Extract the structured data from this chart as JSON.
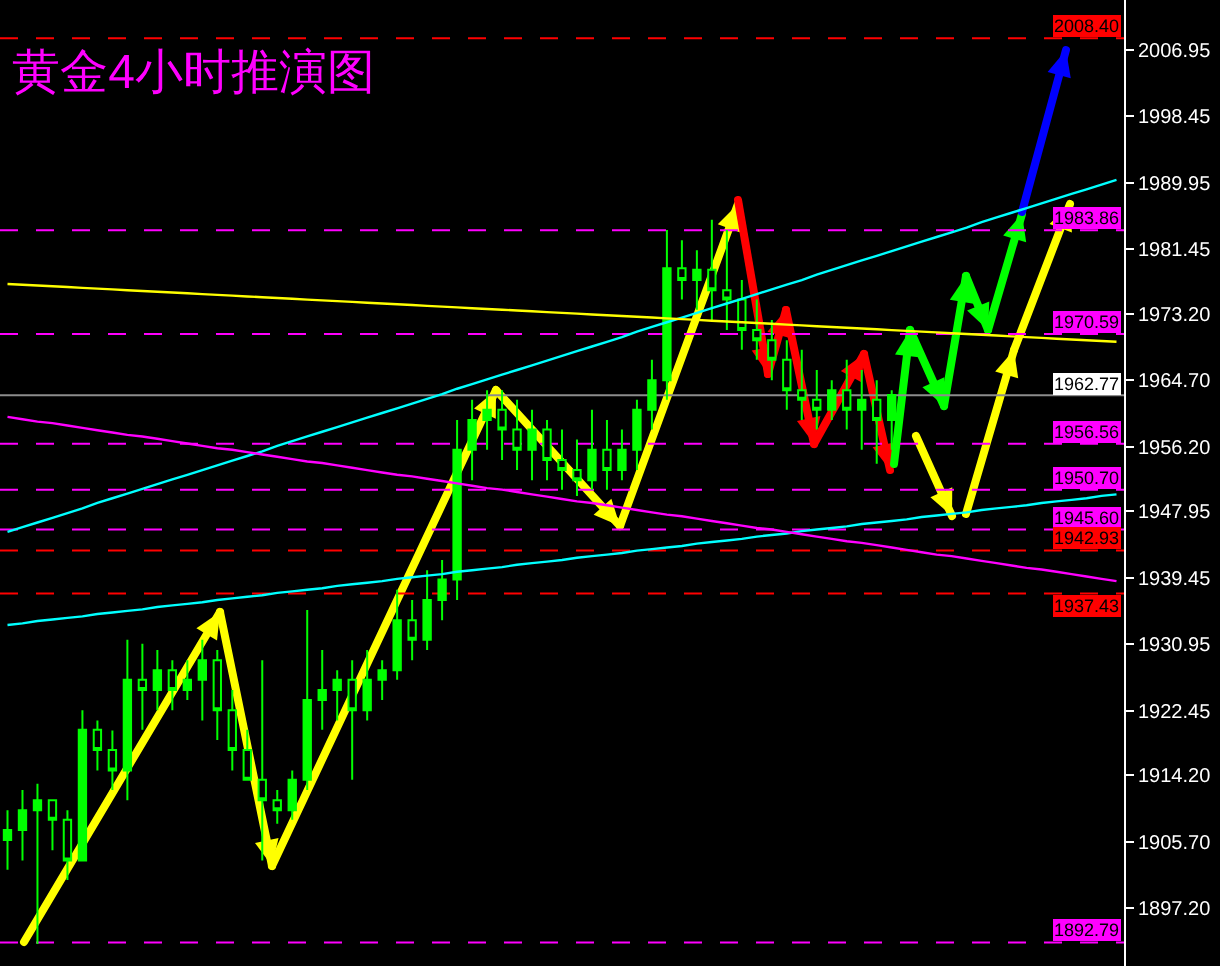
{
  "chart_data": {
    "type": "candlestick",
    "title": "黄金4小时推演图",
    "categories": [
      null,
      null,
      null,
      null,
      null,
      null,
      null,
      null,
      null,
      null,
      null,
      null,
      null,
      null,
      null,
      null,
      null,
      null,
      null,
      null,
      null,
      null,
      null,
      null,
      null,
      null,
      null,
      null,
      null,
      null,
      null,
      null,
      null,
      null,
      null,
      null,
      null,
      null,
      null,
      null,
      null,
      null,
      null,
      null,
      null,
      null,
      null,
      null,
      null,
      null,
      null,
      null,
      null,
      null,
      null,
      null,
      null,
      null,
      null,
      null,
      null,
      null,
      null,
      null,
      null,
      null,
      null,
      null,
      null,
      null,
      null,
      null,
      null,
      null,
      null
    ],
    "ylim": [
      1889.8,
      2013.3
    ],
    "yticks": [
      2006.95,
      1998.45,
      1989.95,
      1981.45,
      {
        "value": 1973.2,
        "label": "1973.20"
      },
      {
        "value": 1964.7,
        "label": "1964.70"
      },
      {
        "value": 1956.2,
        "label": "1956.20"
      },
      1947.95,
      1939.45,
      1930.95,
      1922.45,
      {
        "value": 1914.2,
        "label": "1914.20"
      },
      {
        "value": 1905.7,
        "label": "1905.70"
      },
      {
        "value": 1897.2,
        "label": "1897.20"
      }
    ],
    "tick_labels": "y",
    "legend": false,
    "grid": false,
    "series": [
      {
        "color": "#00ff00",
        "ohlc": [
          [
            1905.9,
            1909.7,
            1902.1,
            1907.2
          ],
          [
            1907.2,
            1912.3,
            1903.3,
            1909.7
          ],
          [
            1909.7,
            1913.1,
            1892.6,
            1911.0
          ],
          [
            1911.0,
            1911.0,
            1904.6,
            1908.5
          ],
          [
            1908.5,
            1909.7,
            1900.8,
            1903.3
          ],
          [
            1903.3,
            1922.5,
            1903.3,
            1920.0
          ],
          [
            1920.0,
            1921.2,
            1914.8,
            1917.4
          ],
          [
            1917.4,
            1919.9,
            1912.3,
            1914.8
          ],
          [
            1914.8,
            1931.5,
            1911.0,
            1926.4
          ],
          [
            1926.4,
            1931.0,
            1920.0,
            1925.1
          ],
          [
            1925.1,
            1930.2,
            1922.5,
            1927.6
          ],
          [
            1927.6,
            1928.9,
            1922.5,
            1925.1
          ],
          [
            1925.1,
            1928.9,
            1923.8,
            1926.4
          ],
          [
            1926.4,
            1931.5,
            1921.2,
            1928.9
          ],
          [
            1928.9,
            1930.2,
            1918.7,
            1922.5
          ],
          [
            1922.5,
            1925.1,
            1914.8,
            1917.4
          ],
          [
            1917.4,
            1920.0,
            1913.6,
            1913.6
          ],
          [
            1913.6,
            1928.9,
            1903.3,
            1911.0
          ],
          [
            1911.0,
            1912.3,
            1908.0,
            1909.7
          ],
          [
            1909.7,
            1914.8,
            1908.5,
            1913.6
          ],
          [
            1913.6,
            1935.3,
            1912.3,
            1923.8
          ],
          [
            1923.8,
            1930.2,
            1920.0,
            1925.1
          ],
          [
            1925.1,
            1927.6,
            1921.2,
            1926.4
          ],
          [
            1926.4,
            1928.9,
            1913.6,
            1922.5
          ],
          [
            1922.5,
            1930.2,
            1921.2,
            1926.4
          ],
          [
            1926.4,
            1928.9,
            1923.8,
            1927.6
          ],
          [
            1927.6,
            1937.9,
            1926.4,
            1934.0
          ],
          [
            1934.0,
            1936.6,
            1928.9,
            1931.5
          ],
          [
            1931.5,
            1940.4,
            1930.2,
            1936.6
          ],
          [
            1936.6,
            1941.7,
            1934.0,
            1939.2
          ],
          [
            1939.2,
            1959.6,
            1936.6,
            1955.8
          ],
          [
            1955.8,
            1962.2,
            1951.9,
            1959.6
          ],
          [
            1959.6,
            1963.4,
            1955.8,
            1960.9
          ],
          [
            1960.9,
            1963.4,
            1954.5,
            1958.4
          ],
          [
            1958.4,
            1962.2,
            1953.2,
            1955.8
          ],
          [
            1955.8,
            1960.9,
            1951.9,
            1958.4
          ],
          [
            1958.4,
            1959.6,
            1951.9,
            1954.5
          ],
          [
            1954.5,
            1958.4,
            1950.7,
            1953.2
          ],
          [
            1953.2,
            1957.1,
            1949.9,
            1951.9
          ],
          [
            1951.9,
            1960.9,
            1950.7,
            1955.8
          ],
          [
            1955.8,
            1959.6,
            1950.7,
            1953.2
          ],
          [
            1953.2,
            1958.4,
            1951.9,
            1955.8
          ],
          [
            1955.8,
            1962.2,
            1953.2,
            1960.9
          ],
          [
            1960.9,
            1967.3,
            1958.4,
            1964.7
          ],
          [
            1964.7,
            1983.9,
            1962.2,
            1979.0
          ],
          [
            1979.0,
            1982.6,
            1975.0,
            1977.5
          ],
          [
            1977.5,
            1981.3,
            1973.7,
            1978.8
          ],
          [
            1978.8,
            1985.2,
            1972.4,
            1976.2
          ],
          [
            1976.2,
            1983.9,
            1971.1,
            1975.0
          ],
          [
            1975.0,
            1977.5,
            1968.6,
            1971.1
          ],
          [
            1971.1,
            1975.0,
            1967.3,
            1969.8
          ],
          [
            1969.8,
            1972.4,
            1964.7,
            1967.3
          ],
          [
            1967.3,
            1969.8,
            1960.9,
            1963.4
          ],
          [
            1963.4,
            1968.6,
            1959.6,
            1962.2
          ],
          [
            1962.2,
            1966.0,
            1958.4,
            1960.9
          ],
          [
            1960.9,
            1964.7,
            1959.6,
            1963.4
          ],
          [
            1963.4,
            1967.3,
            1958.4,
            1960.9
          ],
          [
            1960.9,
            1966.0,
            1955.8,
            1962.2
          ],
          [
            1962.2,
            1964.7,
            1954.0,
            1959.6
          ],
          [
            1959.6,
            1963.4,
            1955.8,
            1962.8
          ],
          null,
          null,
          null,
          null,
          null,
          null,
          null,
          null,
          null,
          null,
          null,
          null,
          null,
          null,
          null
        ]
      },
      {
        "type": "line",
        "color": "#00ffff",
        "values": [
          1945.3,
          1945.9,
          1946.5,
          1947.1,
          1947.7,
          1948.3,
          1949.0,
          1949.6,
          1950.2,
          1950.8,
          1951.4,
          1952.0,
          1952.6,
          1953.2,
          1953.8,
          1954.4,
          1955.0,
          1955.6,
          1956.3,
          1956.9,
          1957.5,
          1958.1,
          1958.7,
          1959.3,
          1959.9,
          1960.5,
          1961.1,
          1961.7,
          1962.3,
          1962.9,
          1963.6,
          1964.2,
          1964.8,
          1965.4,
          1966.0,
          1966.6,
          1967.2,
          1967.8,
          1968.4,
          1969.0,
          1969.6,
          1970.2,
          1970.9,
          1971.5,
          1972.1,
          1972.7,
          1973.3,
          1973.9,
          1974.5,
          1975.1,
          1975.7,
          1976.3,
          1976.9,
          1977.5,
          1978.2,
          1978.8,
          1979.4,
          1980.0,
          1980.6,
          1981.2,
          1981.8,
          1982.4,
          1983.0,
          1983.6,
          1984.2,
          1984.9,
          1985.5,
          1986.1,
          1986.7,
          1987.3,
          1987.9,
          1988.5,
          1989.1,
          1989.7,
          1990.3
        ]
      },
      {
        "type": "line",
        "color": "#00ffff",
        "values": [
          1933.4,
          1933.6,
          1933.9,
          1934.1,
          1934.3,
          1934.5,
          1934.8,
          1935.0,
          1935.2,
          1935.4,
          1935.7,
          1935.9,
          1936.1,
          1936.3,
          1936.6,
          1936.8,
          1937.0,
          1937.2,
          1937.5,
          1937.7,
          1937.9,
          1938.1,
          1938.4,
          1938.6,
          1938.8,
          1939.0,
          1939.3,
          1939.5,
          1939.7,
          1939.9,
          1940.2,
          1940.4,
          1940.6,
          1940.8,
          1941.1,
          1941.3,
          1941.5,
          1941.7,
          1942.0,
          1942.2,
          1942.4,
          1942.6,
          1942.9,
          1943.1,
          1943.3,
          1943.5,
          1943.8,
          1944.0,
          1944.2,
          1944.4,
          1944.7,
          1944.9,
          1945.1,
          1945.4,
          1945.6,
          1945.8,
          1946.0,
          1946.3,
          1946.5,
          1946.7,
          1946.9,
          1947.2,
          1947.4,
          1947.6,
          1947.8,
          1948.1,
          1948.3,
          1948.5,
          1948.7,
          1949.0,
          1949.2,
          1949.4,
          1949.6,
          1949.9,
          1950.1
        ]
      },
      {
        "type": "line",
        "color": "#ffff00",
        "values": [
          1977.0,
          1976.9,
          1976.8,
          1976.7,
          1976.6,
          1976.5,
          1976.4,
          1976.3,
          1976.2,
          1976.1,
          1976.0,
          1975.9,
          1975.8,
          1975.7,
          1975.6,
          1975.5,
          1975.4,
          1975.3,
          1975.2,
          1975.1,
          1975.0,
          1974.9,
          1974.8,
          1974.7,
          1974.6,
          1974.5,
          1974.4,
          1974.3,
          1974.2,
          1974.1,
          1974.0,
          1973.9,
          1973.8,
          1973.7,
          1973.6,
          1973.5,
          1973.4,
          1973.3,
          1973.2,
          1973.1,
          1973.0,
          1972.9,
          1972.8,
          1972.7,
          1972.6,
          1972.5,
          1972.4,
          1972.3,
          1972.2,
          1972.1,
          1972.0,
          1971.9,
          1971.8,
          1971.7,
          1971.6,
          1971.5,
          1971.4,
          1971.3,
          1971.2,
          1971.1,
          1971.0,
          1970.9,
          1970.8,
          1970.7,
          1970.6,
          1970.5,
          1970.4,
          1970.3,
          1970.2,
          1970.1,
          1970.0,
          1969.9,
          1969.8,
          1969.7,
          1969.6
        ]
      },
      {
        "type": "line",
        "color": "#ff00ff",
        "values": [
          1960.0,
          1959.7,
          1959.4,
          1959.2,
          1958.9,
          1958.6,
          1958.3,
          1958.0,
          1957.7,
          1957.5,
          1957.2,
          1956.9,
          1956.6,
          1956.3,
          1956.0,
          1955.8,
          1955.5,
          1955.2,
          1954.9,
          1954.6,
          1954.3,
          1954.1,
          1953.8,
          1953.5,
          1953.2,
          1952.9,
          1952.6,
          1952.4,
          1952.1,
          1951.8,
          1951.5,
          1951.2,
          1950.9,
          1950.7,
          1950.4,
          1950.1,
          1949.8,
          1949.5,
          1949.2,
          1949.0,
          1948.7,
          1948.4,
          1948.1,
          1947.8,
          1947.5,
          1947.3,
          1947.0,
          1946.7,
          1946.4,
          1946.1,
          1945.8,
          1945.6,
          1945.3,
          1945.0,
          1944.7,
          1944.4,
          1944.1,
          1943.9,
          1943.6,
          1943.3,
          1943.0,
          1942.7,
          1942.4,
          1942.2,
          1941.9,
          1941.6,
          1941.3,
          1941.0,
          1940.7,
          1940.5,
          1940.2,
          1939.9,
          1939.6,
          1939.3,
          1939.0
        ]
      }
    ],
    "ref_lines": [
      {
        "axis": "y",
        "value": 2008.4,
        "label": "2008.40",
        "color": "#ff0000",
        "line_style": "dashed"
      },
      {
        "axis": "y",
        "value": 1983.86,
        "label": "1983.86",
        "color": "#ff00ff",
        "line_style": "dashed"
      },
      {
        "axis": "y",
        "value": 1970.59,
        "label": "1970.59",
        "color": "#ff00ff",
        "line_style": "dashed"
      },
      {
        "axis": "y",
        "value": 1962.77,
        "label": "1962.77",
        "color": "#8c8c8c",
        "line_style": "solid"
      },
      {
        "axis": "y",
        "value": 1956.56,
        "label": "1956.56",
        "color": "#ff00ff",
        "line_style": "dashed"
      },
      {
        "axis": "y",
        "value": 1950.7,
        "label": "1950.70",
        "color": "#ff00ff",
        "line_style": "dashed"
      },
      {
        "axis": "y",
        "value": 1945.6,
        "label": "1945.60",
        "color": "#ff00ff",
        "line_style": "dashed"
      },
      {
        "axis": "y",
        "value": 1942.93,
        "label": "1942.93",
        "color": "#ff0000",
        "line_style": "dashed"
      },
      {
        "axis": "y",
        "value": 1937.43,
        "label": "1937.43",
        "color": "#ff0000",
        "line_style": "dashed"
      },
      {
        "axis": "y",
        "value": 1892.79,
        "label": "1892.79",
        "color": "#ff00ff",
        "line_style": "dashed"
      }
    ]
  }
}
